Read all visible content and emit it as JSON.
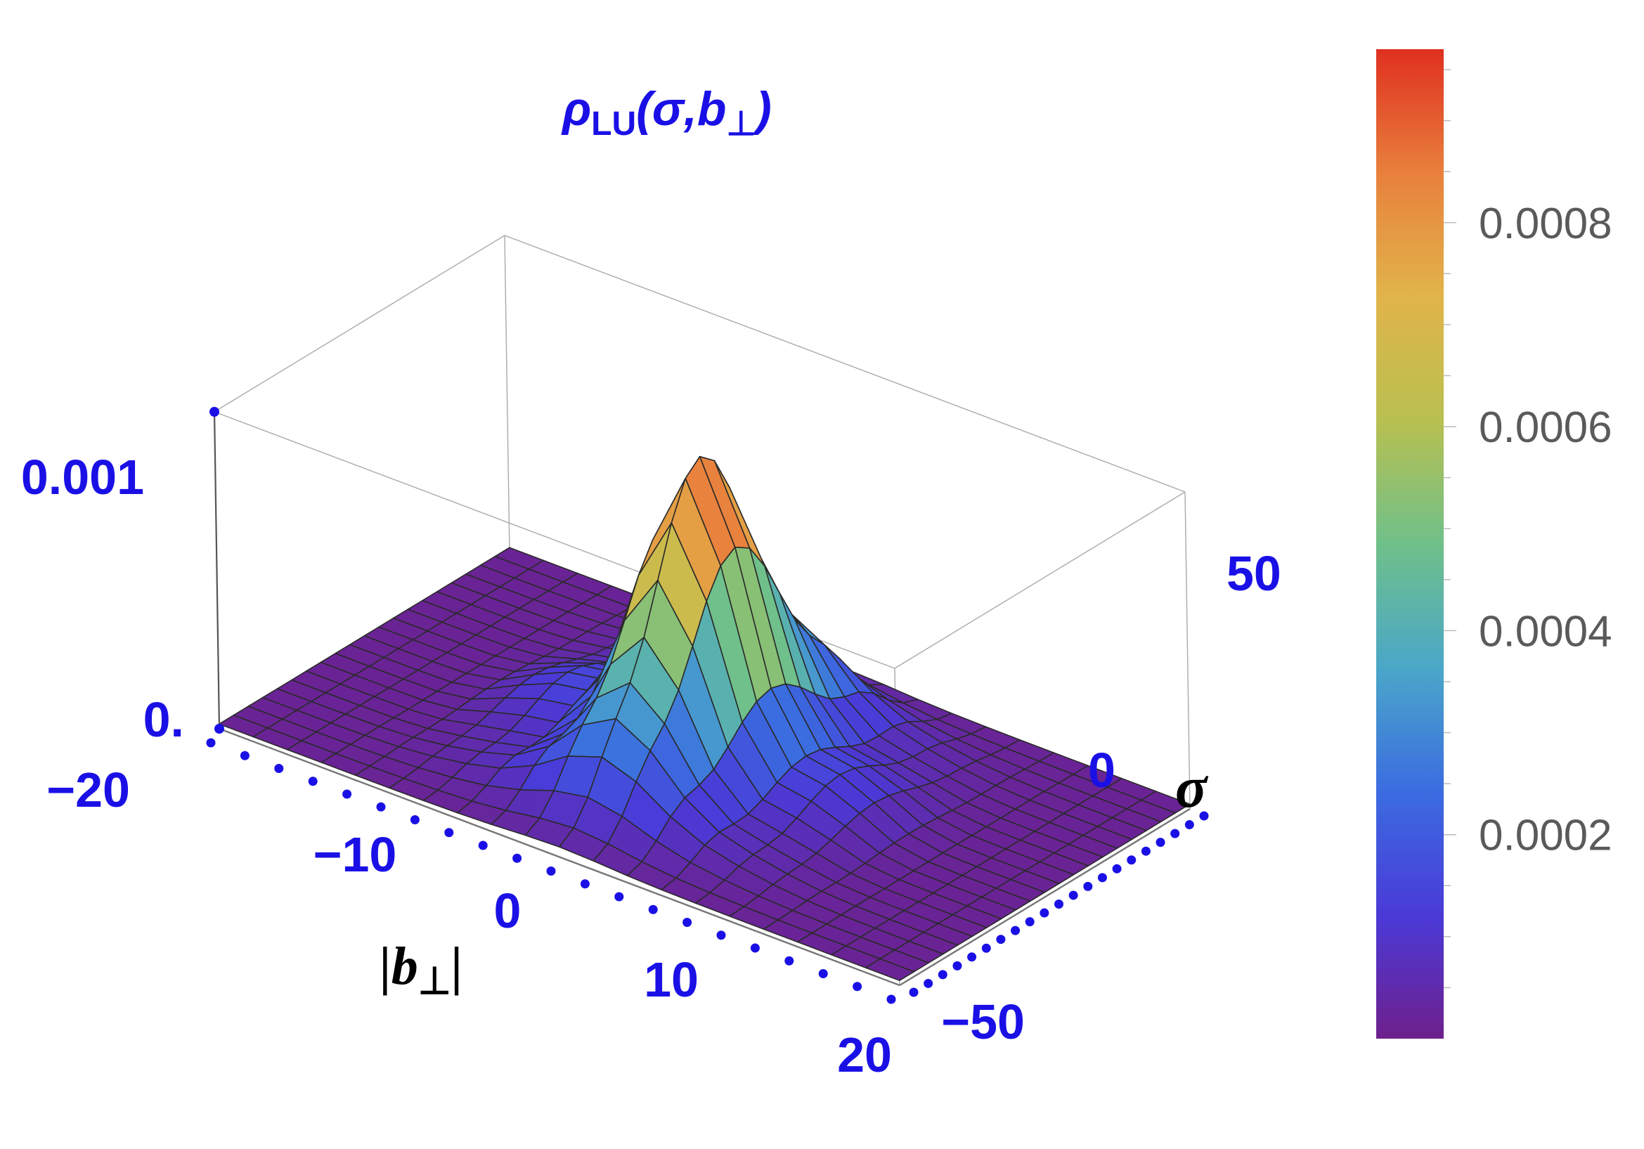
{
  "chart_data": {
    "type": "surface3d",
    "title": "ρLU(σ,b⊥)",
    "title_parts": {
      "main": "ρ",
      "sub": "LU",
      "args": "(σ,b",
      "perp": "⊥",
      "close": ")"
    },
    "x_axis": {
      "label_main": "|b",
      "label_perp": "⊥",
      "label_close": "|",
      "range": [
        -20,
        20
      ],
      "ticks": [
        "−20",
        "−10",
        "0",
        "10",
        "20"
      ]
    },
    "y_axis": {
      "label": "σ",
      "range": [
        -50,
        50
      ],
      "ticks": [
        "−50",
        "0",
        "50"
      ]
    },
    "z_axis": {
      "range": [
        0,
        0.001
      ],
      "ticks": [
        "0.",
        "0.001"
      ]
    },
    "colorbar": {
      "range": [
        0,
        0.00097
      ],
      "ticks": [
        "0.0002",
        "0.0004",
        "0.0006",
        "0.0008"
      ],
      "tick_values": [
        0.0002,
        0.0004,
        0.0006,
        0.0008
      ],
      "colors": [
        "#6e208c",
        "#4a3ad8",
        "#3b6ce0",
        "#4aa7c8",
        "#6fc08a",
        "#b8c050",
        "#e1b44a",
        "#e8803c",
        "#e03020"
      ]
    },
    "surface": {
      "description_values": {
        "peak_z": 0.00097,
        "peak_at": {
          "b_perp": 0,
          "sigma": 0
        }
      },
      "grid": {
        "n_b": 20,
        "n_sigma": 20
      }
    },
    "colors": {
      "tick_text": "#1a10e6",
      "dot": "#1a10e6",
      "box": "#aaaaaa"
    }
  }
}
